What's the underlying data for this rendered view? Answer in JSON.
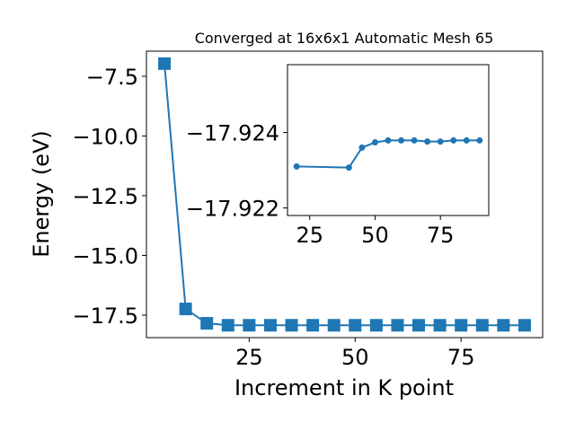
{
  "chart_data": [
    {
      "type": "line",
      "title": "Converged at 16x6x1 Automatic Mesh 65",
      "xlabel": "Increment in K point",
      "ylabel": "Energy (eV)",
      "x": [
        5,
        10,
        15,
        20,
        25,
        30,
        35,
        40,
        45,
        50,
        55,
        60,
        65,
        70,
        75,
        80,
        85,
        90
      ],
      "values": [
        -6.97,
        -17.24,
        -17.84,
        -17.9231,
        -17.9231,
        -17.9231,
        -17.9231,
        -17.92307,
        -17.9236,
        -17.92374,
        -17.92379,
        -17.92379,
        -17.92379,
        -17.92376,
        -17.92376,
        -17.92379,
        -17.92379,
        -17.92379
      ],
      "color": "#1f77b4",
      "marker": "square",
      "xlim": [
        0.75,
        94.25
      ],
      "xticks": [
        25,
        50,
        75
      ],
      "ylim": [
        -18.44,
        -6.45
      ],
      "yticks": [
        {
          "value": -7.5,
          "label": "−7.5"
        },
        {
          "value": -10,
          "label": "−10.0"
        },
        {
          "value": -12.5,
          "label": "−12.5"
        },
        {
          "value": -15,
          "label": "−15.0"
        },
        {
          "value": -17.5,
          "label": "−17.5"
        }
      ]
    },
    {
      "type": "line",
      "x": [
        20,
        40,
        45,
        50,
        55,
        60,
        65,
        70,
        75,
        80,
        85,
        90
      ],
      "values": [
        -17.9231,
        -17.92307,
        -17.9236,
        -17.92374,
        -17.92379,
        -17.92379,
        -17.92379,
        -17.92376,
        -17.92376,
        -17.92379,
        -17.92379,
        -17.92379
      ],
      "color": "#1f77b4",
      "marker": "circle",
      "xlim": [
        16.5,
        93.5
      ],
      "xticks": [
        25,
        50,
        75
      ],
      "ylim": [
        -17.9218,
        -17.9258
      ],
      "yticks": [
        {
          "value": -17.924,
          "label": "−17.924"
        },
        {
          "value": -17.922,
          "label": "−17.922"
        }
      ]
    }
  ]
}
